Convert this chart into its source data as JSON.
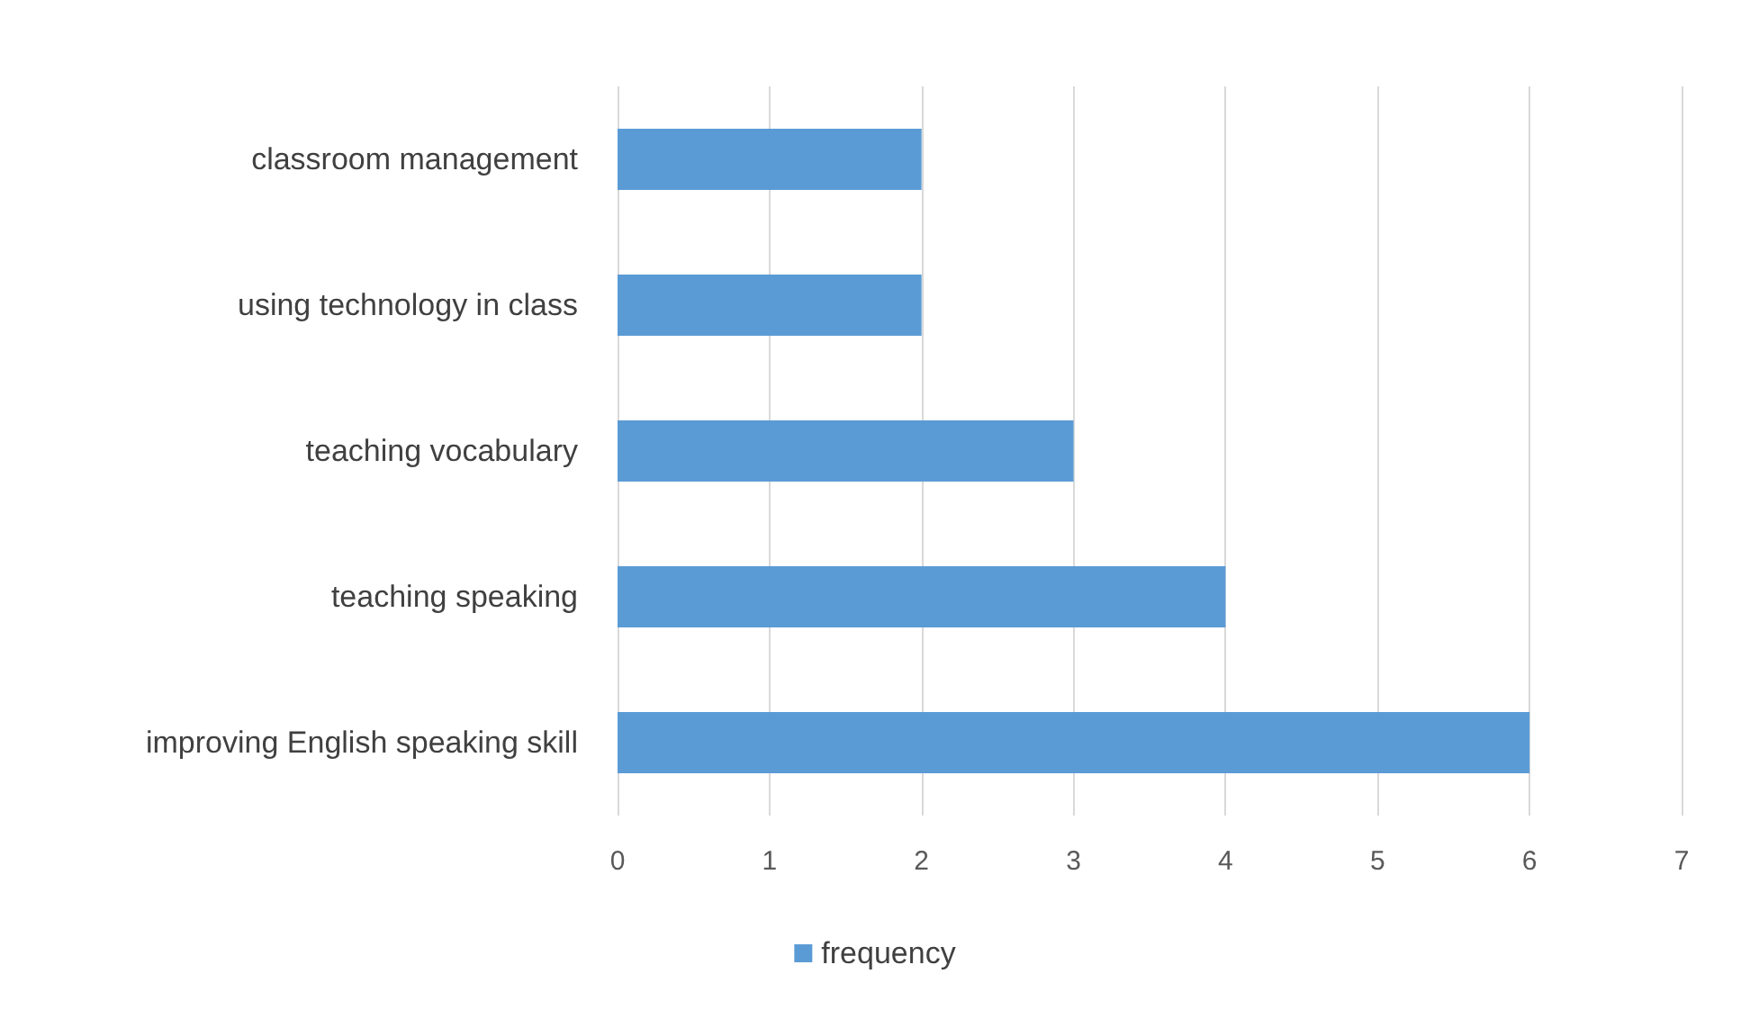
{
  "chart_data": {
    "type": "bar",
    "orientation": "horizontal",
    "categories": [
      "classroom management",
      "using technology in class",
      "teaching vocabulary",
      "teaching speaking",
      "improving English speaking skill"
    ],
    "series": [
      {
        "name": "frequency",
        "color": "#5b9bd5",
        "values": [
          2,
          2,
          3,
          4,
          6
        ]
      }
    ],
    "xlim": [
      0,
      7
    ],
    "xticks": [
      0,
      1,
      2,
      3,
      4,
      5,
      6,
      7
    ],
    "grid": "x",
    "legend": "bottom"
  }
}
